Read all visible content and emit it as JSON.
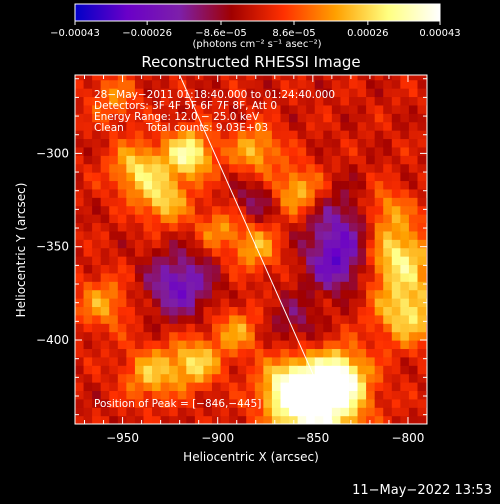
{
  "chart_data": {
    "type": "heatmap",
    "title": "Reconstructed RHESSI Image",
    "xlabel": "Heliocentric X (arcsec)",
    "ylabel": "Heliocentric Y (arcsec)",
    "xlim": [
      -975,
      -790
    ],
    "ylim": [
      -445,
      -258
    ],
    "x_ticks": [
      -950,
      -900,
      -850,
      -800
    ],
    "y_ticks": [
      -300,
      -350,
      -400
    ],
    "x_tick_labels": [
      "−950",
      "−900",
      "−850",
      "−800"
    ],
    "y_tick_labels": [
      "−300",
      "−350",
      "−400"
    ],
    "colorbar": {
      "range": [
        -0.00043,
        0.00043
      ],
      "ticks": [
        -0.00043,
        -0.00026,
        -8.6e-05,
        8.6e-05,
        0.00026,
        0.00043
      ],
      "tick_labels": [
        "−0.00043",
        "−0.00026",
        "−8.6e−05",
        "8.6e−05",
        "0.00026",
        "0.00043"
      ],
      "unit_label": "(photons cm⁻² s⁻¹ asec⁻²)",
      "colors": [
        "#0000c8",
        "#6a00c8",
        "#7d1faa",
        "#a00000",
        "#ff3000",
        "#ffa000",
        "#ffff80",
        "#ffffff"
      ]
    },
    "annotations": {
      "time_range": "28−May−2011 01:18:40.000 to 01:24:40.000",
      "detectors": "Detectors: 3F 4F 5F 6F 7F 8F, Att 0",
      "energy": "Energy Range: 12.0 − 25.0 keV",
      "clean": "Clean",
      "total_counts": "Total counts: 9.03E+03",
      "peak": "Position of Peak = [−846,−445]"
    },
    "limb_line": {
      "x": [
        -920,
        -847
      ],
      "y": [
        -258,
        -425
      ]
    },
    "peak": {
      "x": -846,
      "y": -445
    },
    "blobs": [
      {
        "x": -848,
        "y": -435,
        "r": 16,
        "v": 0.00043
      },
      {
        "x": -836,
        "y": -420,
        "r": 10,
        "v": 0.00032
      },
      {
        "x": -862,
        "y": -425,
        "r": 10,
        "v": 0.00028
      },
      {
        "x": -915,
        "y": -300,
        "r": 9,
        "v": 0.00034
      },
      {
        "x": -942,
        "y": -308,
        "r": 10,
        "v": 0.00026
      },
      {
        "x": -928,
        "y": -325,
        "r": 9,
        "v": 0.00024
      },
      {
        "x": -912,
        "y": -412,
        "r": 9,
        "v": 0.00026
      },
      {
        "x": -935,
        "y": -418,
        "r": 10,
        "v": 0.00022
      },
      {
        "x": -880,
        "y": -298,
        "r": 9,
        "v": 0.00022
      },
      {
        "x": -858,
        "y": -320,
        "r": 9,
        "v": 0.00024
      },
      {
        "x": -880,
        "y": -350,
        "r": 9,
        "v": 0.0002
      },
      {
        "x": -805,
        "y": -355,
        "r": 12,
        "v": 0.0003
      },
      {
        "x": -800,
        "y": -385,
        "r": 12,
        "v": 0.00028
      },
      {
        "x": -812,
        "y": -330,
        "r": 9,
        "v": 0.00018
      },
      {
        "x": -960,
        "y": -380,
        "r": 10,
        "v": 0.00018
      },
      {
        "x": -890,
        "y": -395,
        "r": 9,
        "v": 0.00018
      },
      {
        "x": -955,
        "y": -270,
        "r": 9,
        "v": 0.00014
      },
      {
        "x": -900,
        "y": -340,
        "r": 8,
        "v": 0.00016
      },
      {
        "x": -920,
        "y": -370,
        "r": 12,
        "v": -0.00026
      },
      {
        "x": -835,
        "y": -340,
        "r": 14,
        "v": -0.0002
      },
      {
        "x": -838,
        "y": -360,
        "r": 10,
        "v": -0.00022
      },
      {
        "x": -880,
        "y": -325,
        "r": 8,
        "v": -0.00014
      },
      {
        "x": -860,
        "y": -390,
        "r": 10,
        "v": -0.00012
      }
    ],
    "grid": false,
    "legend": "none"
  },
  "footer": {
    "timestamp": "11−May−2022 13:53"
  }
}
